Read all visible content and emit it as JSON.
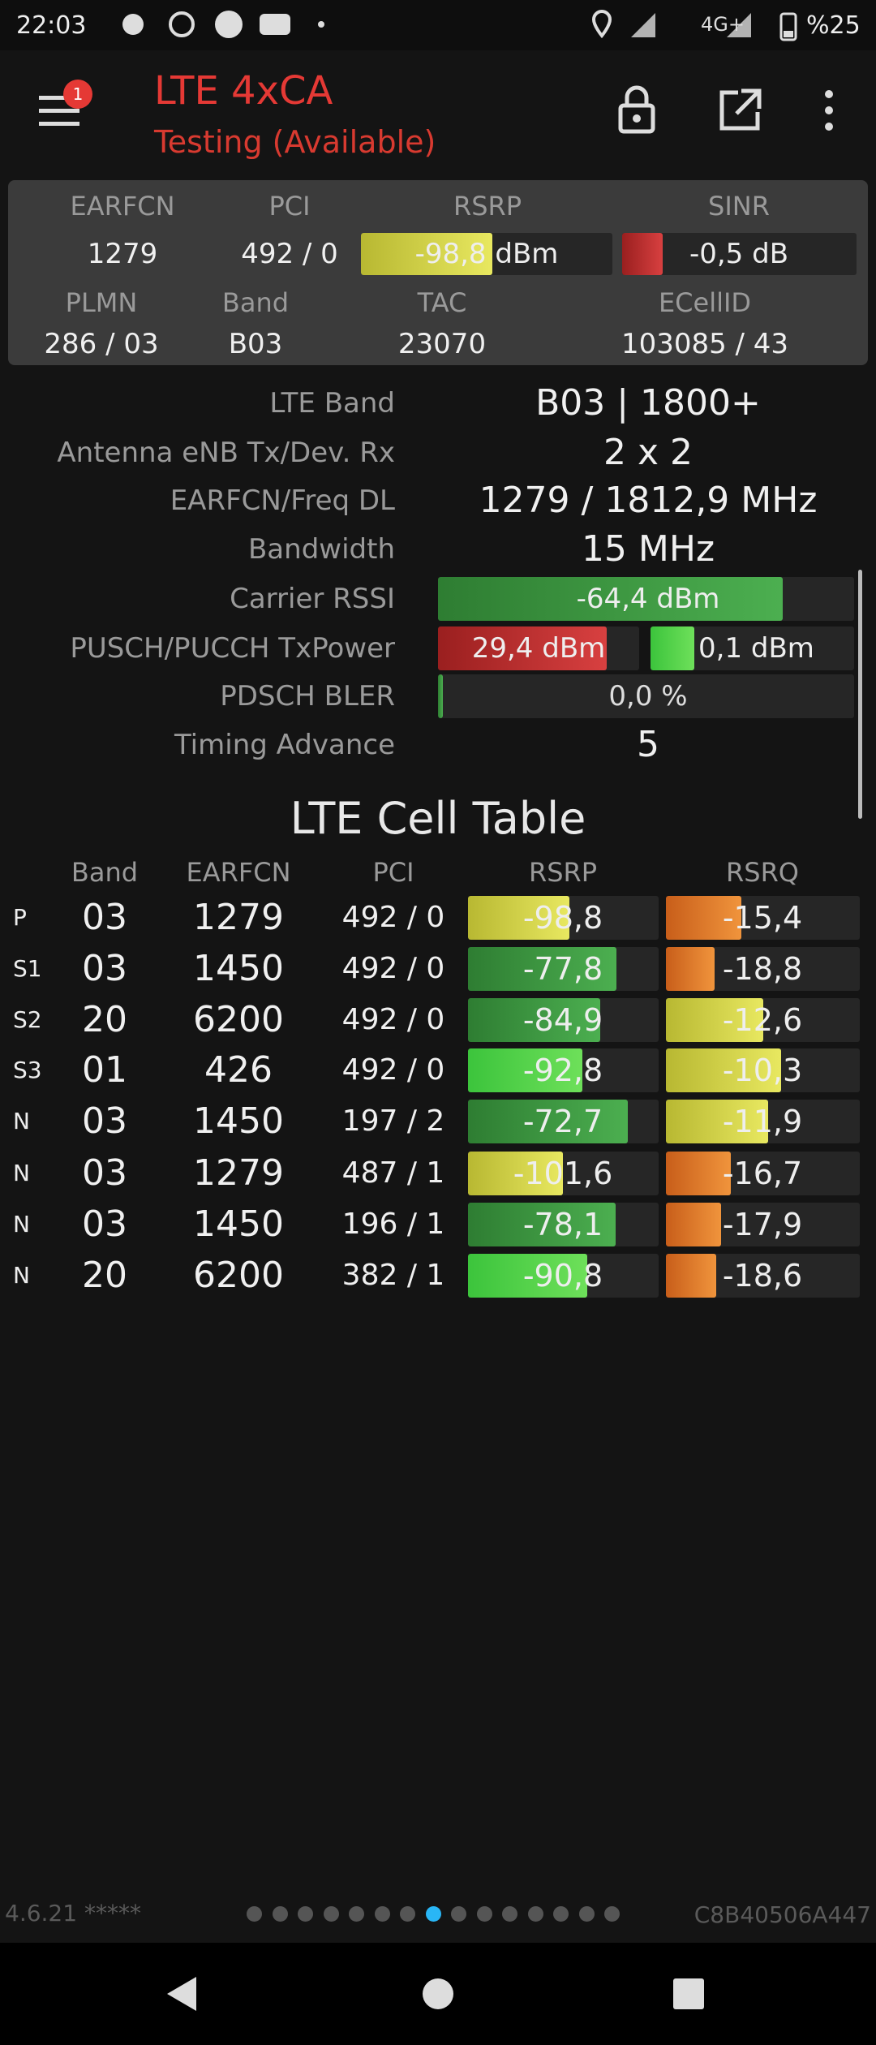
{
  "status_bar": {
    "time": "22:03",
    "network": "4G+",
    "battery": "%25"
  },
  "app_bar": {
    "title": "LTE 4xCA",
    "subtitle": "Testing (Available)",
    "badge": "1"
  },
  "summary": [
    {
      "label": "EARFCN",
      "value": "1279"
    },
    {
      "label": "PCI",
      "value": "492 / 0"
    },
    {
      "label": "RSRP",
      "value": "-98,8 dBm"
    },
    {
      "label": "SINR",
      "value": "-0,5 dB"
    },
    {
      "label": "PLMN",
      "value": "286 / 03"
    },
    {
      "label": "Band",
      "value": "B03"
    },
    {
      "label": "TAC",
      "value": "23070"
    },
    {
      "label": "ECellID",
      "value": "103085 / 43"
    }
  ],
  "info": [
    {
      "label": "LTE Band",
      "value": "B03 | 1800+"
    },
    {
      "label": "Antenna eNB Tx/Dev. Rx",
      "value": "2 x 2"
    },
    {
      "label": "EARFCN/Freq DL",
      "value": "1279 / 1812,9 MHz"
    },
    {
      "label": "Bandwidth",
      "value": "15 MHz"
    },
    {
      "label": "Carrier RSSI",
      "value": "-64,4 dBm"
    },
    {
      "label": "PUSCH/PUCCH TxPower",
      "value": "29,4 dBm",
      "value2": "0,1 dBm"
    },
    {
      "label": "PDSCH BLER",
      "value": "0,0 %"
    },
    {
      "label": "Timing Advance",
      "value": "5"
    }
  ],
  "cell_table": {
    "title": "LTE Cell Table",
    "columns": [
      "Band",
      "EARFCN",
      "PCI",
      "RSRP",
      "RSRQ"
    ],
    "rows": [
      [
        "P",
        "03",
        "1279",
        "492 / 0",
        "-98,8",
        "-15,4"
      ],
      [
        "S1",
        "03",
        "1450",
        "492 / 0",
        "-77,8",
        "-18,8"
      ],
      [
        "S2",
        "20",
        "6200",
        "492 / 0",
        "-84,9",
        "-12,6"
      ],
      [
        "S3",
        "01",
        "426",
        "492 / 0",
        "-92,8",
        "-10,3"
      ],
      [
        "N",
        "03",
        "1450",
        "197 / 2",
        "-72,7",
        "-11,9"
      ],
      [
        "N",
        "03",
        "1279",
        "487 / 1",
        "-101,6",
        "-16,7"
      ],
      [
        "N",
        "03",
        "1450",
        "196 / 1",
        "-78,1",
        "-17,9"
      ],
      [
        "N",
        "20",
        "6200",
        "382 / 1",
        "-90,8",
        "-18,6"
      ]
    ]
  },
  "footer": {
    "version": "4.6.21 *****",
    "device_id": "C8B40506A447"
  }
}
